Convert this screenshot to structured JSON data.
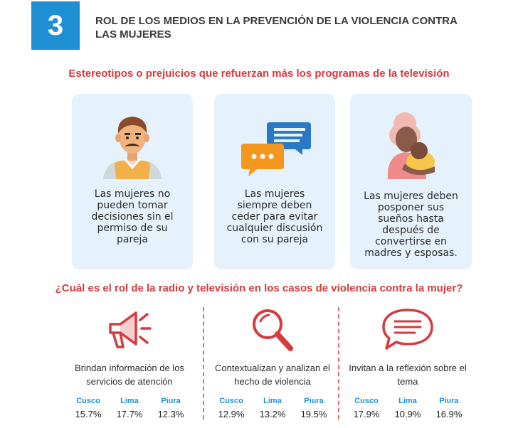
{
  "header": {
    "number": "3",
    "title": "ROL DE LOS MEDIOS EN LA PREVENCIÓN DE LA VIOLENCIA CONTRA LAS MUJERES"
  },
  "section1": {
    "title": "Estereotipos o prejuicios que refuerzan más los programas de la televisión",
    "cards": [
      {
        "icon": "man-avatar-icon",
        "text": "Las mujeres no pueden tomar decisiones sin el permiso de su pareja"
      },
      {
        "icon": "chat-bubbles-icon",
        "text": "Las mujeres siempre deben ceder para evitar cualquier discusión con su pareja"
      },
      {
        "icon": "mother-baby-icon",
        "text": "Las mujeres deben posponer sus sueños hasta después de convertirse en madres y esposas."
      }
    ]
  },
  "section2": {
    "title": "¿Cuál es el rol de la radio y televisión en los casos de violencia contra la mujer?",
    "columns": [
      {
        "icon": "megaphone-icon",
        "label": "Brindan información de los servicios de atención",
        "stats": [
          {
            "city": "Cusco",
            "value": "15.7%"
          },
          {
            "city": "Lima",
            "value": "17.7%"
          },
          {
            "city": "Piura",
            "value": "12.3%"
          }
        ]
      },
      {
        "icon": "magnifier-icon",
        "label": "Contextualizan y analizan el hecho de violencia",
        "stats": [
          {
            "city": "Cusco",
            "value": "12.9%"
          },
          {
            "city": "Lima",
            "value": "13.2%"
          },
          {
            "city": "Piura",
            "value": "19.5%"
          }
        ]
      },
      {
        "icon": "speech-bubble-icon",
        "label": "Invitan a la reflexión sobre el tema",
        "stats": [
          {
            "city": "Cusco",
            "value": "17.9%"
          },
          {
            "city": "Lima",
            "value": "10.9%"
          },
          {
            "city": "Piura",
            "value": "16.9%"
          }
        ]
      }
    ]
  },
  "colors": {
    "blue": "#1f8fd4",
    "red": "#d63a3e",
    "card_bg": "#e6f2fb"
  }
}
